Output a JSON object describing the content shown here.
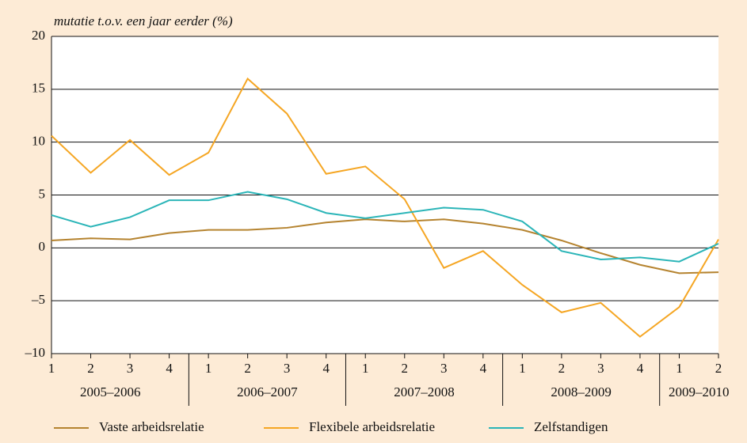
{
  "chart_data": {
    "type": "line",
    "y_label": "mutatie t.o.v. een jaar eerder (%)",
    "categories": [
      "1",
      "2",
      "3",
      "4",
      "1",
      "2",
      "3",
      "4",
      "1",
      "2",
      "3",
      "4",
      "1",
      "2",
      "3",
      "4",
      "1",
      "2"
    ],
    "groups": [
      {
        "name": "2005–2006",
        "count": 4
      },
      {
        "name": "2006–2007",
        "count": 4
      },
      {
        "name": "2007–2008",
        "count": 4
      },
      {
        "name": "2008–2009",
        "count": 4
      },
      {
        "name": "2009–2010",
        "count": 2
      }
    ],
    "series": [
      {
        "name": "Vaste arbeidsrelatie",
        "color": "#b5832f",
        "values": [
          0.7,
          0.9,
          0.8,
          1.4,
          1.7,
          1.7,
          1.9,
          2.4,
          2.7,
          2.5,
          2.7,
          2.3,
          1.7,
          0.7,
          -0.5,
          -1.6,
          -2.4,
          -2.3
        ]
      },
      {
        "name": "Flexibele arbeidsrelatie",
        "color": "#f5a623",
        "values": [
          10.6,
          7.1,
          10.2,
          6.9,
          9.0,
          16.0,
          12.7,
          7.0,
          7.7,
          4.6,
          -1.9,
          -0.3,
          -3.5,
          -6.1,
          -5.2,
          -8.4,
          -5.6,
          0.8
        ]
      },
      {
        "name": "Zelfstandigen",
        "color": "#2bb5b8",
        "values": [
          3.1,
          2.0,
          2.9,
          4.5,
          4.5,
          5.3,
          4.6,
          3.3,
          2.8,
          3.3,
          3.8,
          3.6,
          2.5,
          -0.3,
          -1.1,
          -0.9,
          -1.3,
          0.4
        ]
      }
    ],
    "ylim": [
      -10,
      20
    ],
    "yticks": [
      {
        "value": -10,
        "label": "–10"
      },
      {
        "value": -5,
        "label": "–5"
      },
      0,
      5,
      10,
      15,
      20
    ],
    "grid": true,
    "legend": "bottom"
  }
}
